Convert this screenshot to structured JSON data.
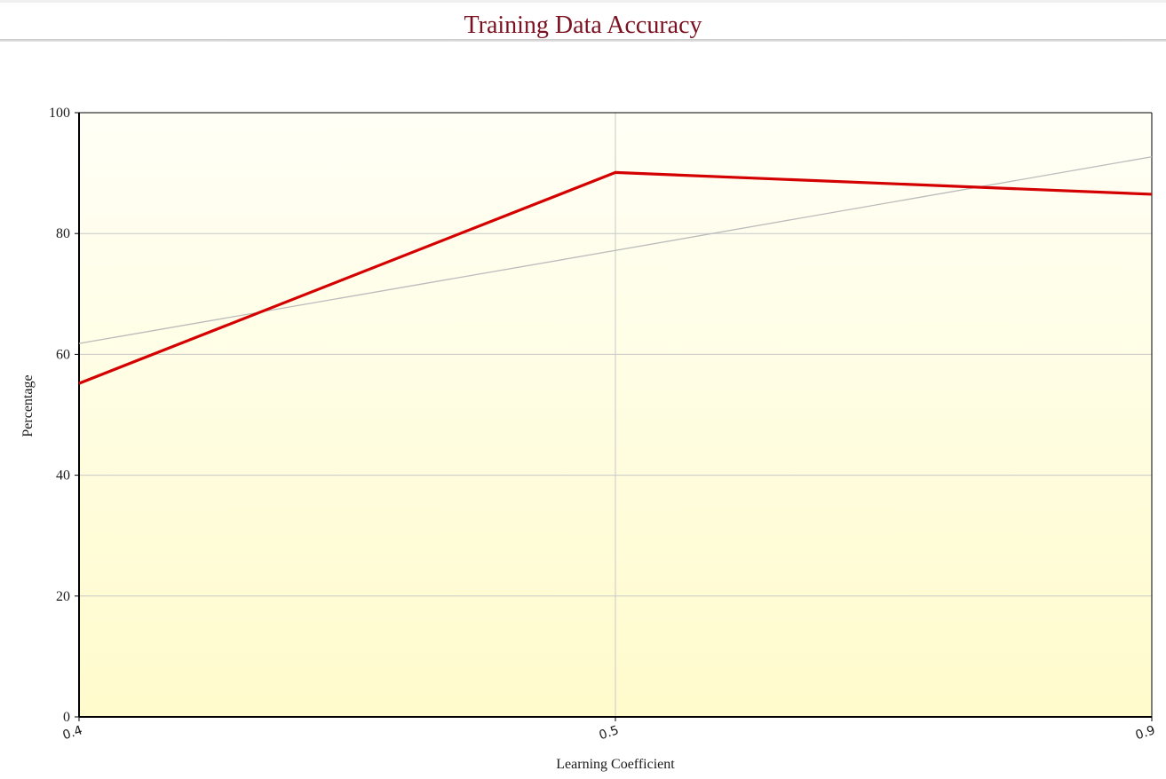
{
  "chart_data": {
    "type": "line",
    "title": "Training Data Accuracy",
    "xlabel": "Learning Coefficient",
    "ylabel": "Percentage",
    "categories": [
      "0.4",
      "0.5",
      "0.9"
    ],
    "series": [
      {
        "values": [
          55.2,
          90.1,
          86.5
        ],
        "color": "#d40000"
      },
      {
        "values": [
          61.8,
          77.2,
          92.7
        ],
        "color": "#bbbbbb",
        "role": "trendline"
      }
    ],
    "ylim": [
      0,
      100
    ],
    "yticks": [
      0,
      20,
      40,
      60,
      80,
      100
    ],
    "grid": true,
    "colors": {
      "title": "#7a1020",
      "plot_top": "#fffff6",
      "plot_bottom": "#fffbcc",
      "grid": "#c8c8c8"
    }
  }
}
